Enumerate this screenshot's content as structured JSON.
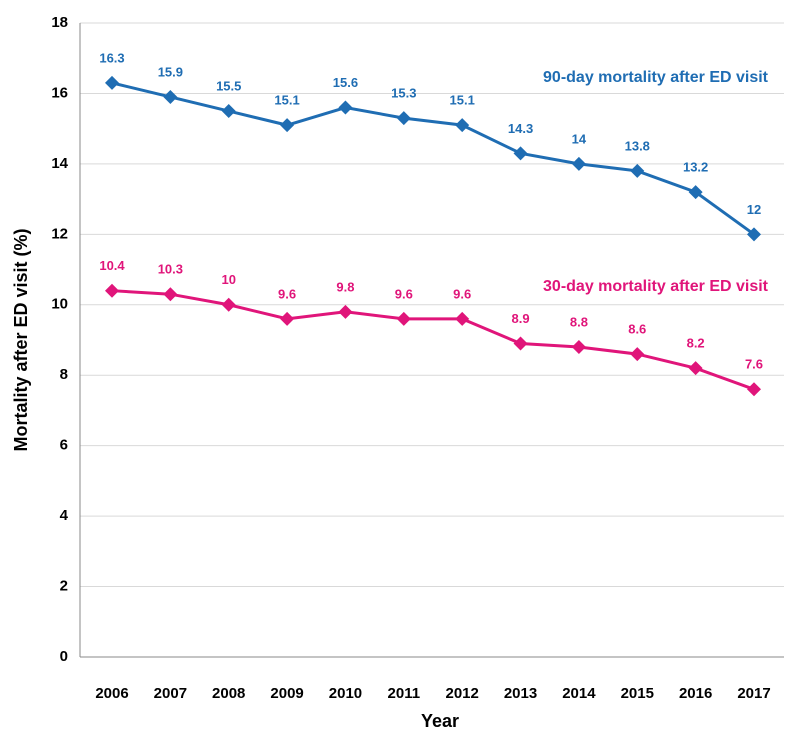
{
  "chart_data": {
    "type": "line",
    "x_label": "Year",
    "y_label": "Mortality after ED visit (%)",
    "categories": [
      "2006",
      "2007",
      "2008",
      "2009",
      "2010",
      "2011",
      "2012",
      "2013",
      "2014",
      "2015",
      "2016",
      "2017"
    ],
    "series": [
      {
        "name": "90-day mortality after ED visit",
        "color": "#1f6db3",
        "values": [
          16.3,
          15.9,
          15.5,
          15.1,
          15.6,
          15.3,
          15.1,
          14.3,
          14,
          13.8,
          13.2,
          12
        ]
      },
      {
        "name": "30-day mortality after ED visit",
        "color": "#e0157a",
        "values": [
          10.4,
          10.3,
          10,
          9.6,
          9.8,
          9.6,
          9.6,
          8.9,
          8.8,
          8.6,
          8.2,
          7.6
        ]
      }
    ],
    "ylim": [
      0,
      18
    ],
    "yticks": [
      0,
      2,
      4,
      6,
      8,
      10,
      12,
      14,
      16,
      18
    ],
    "grid": true
  }
}
